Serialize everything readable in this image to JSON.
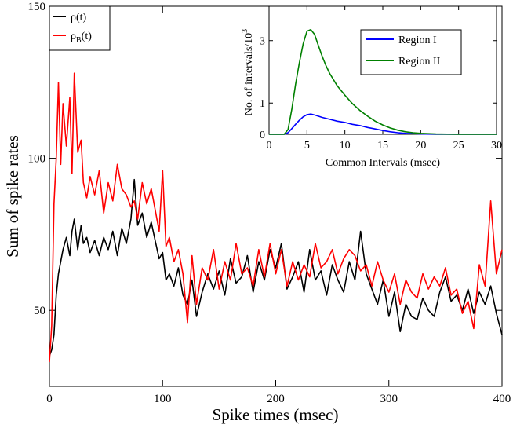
{
  "chart_data": [
    {
      "id": "main",
      "type": "line",
      "xlabel": "Spike times (msec)",
      "ylabel": "Sum of spike rates",
      "xlim": [
        0,
        400
      ],
      "ylim": [
        25,
        150
      ],
      "xticks": [
        "0",
        "100",
        "200",
        "300",
        "400"
      ],
      "yticks": [
        "50",
        "100",
        "150"
      ],
      "legend_position": "top-left",
      "series": [
        {
          "name": "ρ(t)",
          "color": "#000000",
          "x": [
            0,
            2,
            4,
            6,
            8,
            10,
            12,
            15,
            18,
            20,
            22,
            25,
            28,
            30,
            33,
            36,
            40,
            44,
            48,
            52,
            56,
            60,
            64,
            68,
            72,
            75,
            78,
            82,
            86,
            90,
            94,
            97,
            100,
            103,
            106,
            110,
            114,
            118,
            122,
            126,
            130,
            135,
            140,
            145,
            150,
            155,
            160,
            165,
            170,
            175,
            180,
            185,
            190,
            195,
            200,
            205,
            210,
            215,
            220,
            225,
            230,
            235,
            240,
            245,
            250,
            255,
            260,
            265,
            270,
            275,
            280,
            285,
            290,
            295,
            300,
            305,
            310,
            315,
            320,
            325,
            330,
            335,
            340,
            345,
            350,
            355,
            360,
            365,
            370,
            375,
            380,
            385,
            390,
            395,
            400
          ],
          "values": [
            35,
            37,
            42,
            55,
            62,
            66,
            70,
            74,
            68,
            76,
            80,
            70,
            78,
            72,
            74,
            69,
            73,
            68,
            74,
            70,
            76,
            68,
            77,
            72,
            80,
            93,
            78,
            82,
            74,
            79,
            72,
            67,
            69,
            60,
            62,
            58,
            64,
            55,
            52,
            60,
            48,
            56,
            62,
            57,
            63,
            55,
            67,
            59,
            61,
            68,
            56,
            66,
            60,
            70,
            64,
            72,
            57,
            61,
            66,
            56,
            70,
            60,
            63,
            55,
            65,
            60,
            56,
            66,
            60,
            76,
            62,
            57,
            52,
            60,
            48,
            56,
            43,
            52,
            48,
            47,
            54,
            50,
            48,
            56,
            61,
            53,
            55,
            50,
            57,
            49,
            56,
            52,
            58,
            49,
            42
          ]
        },
        {
          "name": "ρ_B(t)",
          "color": "#ff0000",
          "x": [
            0,
            2,
            4,
            6,
            8,
            10,
            12,
            15,
            18,
            20,
            22,
            25,
            28,
            30,
            33,
            36,
            40,
            44,
            48,
            52,
            56,
            60,
            64,
            68,
            72,
            75,
            78,
            82,
            86,
            90,
            94,
            97,
            100,
            103,
            106,
            110,
            114,
            118,
            122,
            126,
            130,
            135,
            140,
            145,
            150,
            155,
            160,
            165,
            170,
            175,
            180,
            185,
            190,
            195,
            200,
            205,
            210,
            215,
            220,
            225,
            230,
            235,
            240,
            245,
            250,
            255,
            260,
            265,
            270,
            275,
            280,
            285,
            290,
            295,
            300,
            305,
            310,
            315,
            320,
            325,
            330,
            335,
            340,
            345,
            350,
            355,
            360,
            365,
            370,
            375,
            380,
            385,
            390,
            395,
            400
          ],
          "values": [
            33,
            45,
            85,
            100,
            125,
            98,
            118,
            104,
            120,
            95,
            128,
            102,
            106,
            92,
            87,
            94,
            88,
            96,
            82,
            92,
            86,
            98,
            90,
            88,
            84,
            86,
            80,
            92,
            85,
            90,
            82,
            76,
            96,
            71,
            74,
            66,
            70,
            62,
            46,
            68,
            52,
            64,
            60,
            70,
            57,
            66,
            60,
            72,
            62,
            64,
            58,
            70,
            61,
            72,
            62,
            70,
            58,
            66,
            60,
            65,
            61,
            72,
            64,
            66,
            70,
            62,
            67,
            70,
            68,
            63,
            65,
            58,
            66,
            60,
            56,
            62,
            52,
            60,
            56,
            54,
            62,
            57,
            61,
            58,
            64,
            55,
            57,
            49,
            53,
            44,
            65,
            58,
            86,
            62,
            70
          ]
        }
      ]
    },
    {
      "id": "inset",
      "type": "line",
      "xlabel": "Common Intervals (msec)",
      "ylabel": "No. of intervals/10",
      "ylabel_superscript": "3",
      "xlim": [
        0,
        30
      ],
      "ylim": [
        0,
        4.1
      ],
      "xticks": [
        "0",
        "5",
        "10",
        "15",
        "20",
        "25",
        "30"
      ],
      "yticks": [
        "0",
        "1",
        "3"
      ],
      "legend_position": "top-right",
      "series": [
        {
          "name": "Region I",
          "color": "#0000ff",
          "x": [
            0,
            2,
            2.5,
            3,
            3.5,
            4,
            4.5,
            5,
            5.5,
            6,
            6.5,
            7,
            8,
            9,
            10,
            11,
            12,
            13,
            14,
            15,
            16,
            17,
            18,
            19,
            20,
            22,
            25,
            28,
            30
          ],
          "values": [
            0,
            0,
            0.05,
            0.18,
            0.32,
            0.45,
            0.56,
            0.63,
            0.65,
            0.62,
            0.58,
            0.54,
            0.48,
            0.42,
            0.38,
            0.32,
            0.28,
            0.22,
            0.17,
            0.12,
            0.08,
            0.05,
            0.03,
            0.02,
            0.01,
            0,
            0,
            0,
            0
          ]
        },
        {
          "name": "Region II",
          "color": "#008000",
          "x": [
            0,
            2,
            2.5,
            3,
            3.5,
            4,
            4.5,
            5,
            5.5,
            6,
            6.5,
            7,
            7.5,
            8,
            9,
            10,
            11,
            12,
            13,
            14,
            15,
            16,
            17,
            18,
            19,
            20,
            22,
            25,
            28,
            30
          ],
          "values": [
            0,
            0,
            0.15,
            0.8,
            1.6,
            2.3,
            2.9,
            3.3,
            3.35,
            3.2,
            2.85,
            2.5,
            2.2,
            1.95,
            1.55,
            1.25,
            0.98,
            0.76,
            0.58,
            0.42,
            0.3,
            0.2,
            0.13,
            0.08,
            0.05,
            0.03,
            0.01,
            0,
            0,
            0
          ]
        }
      ]
    }
  ]
}
